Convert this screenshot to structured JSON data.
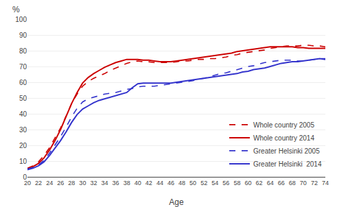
{
  "chart_data": {
    "type": "line",
    "xlabel": "Age",
    "annotations": [
      "%"
    ],
    "x": [
      20,
      21,
      22,
      23,
      24,
      25,
      26,
      27,
      28,
      29,
      30,
      31,
      32,
      33,
      34,
      35,
      36,
      37,
      38,
      39,
      40,
      41,
      42,
      43,
      44,
      45,
      46,
      47,
      48,
      49,
      50,
      51,
      52,
      53,
      54,
      55,
      56,
      57,
      58,
      59,
      60,
      61,
      62,
      63,
      64,
      65,
      66,
      67,
      68,
      69,
      70,
      71,
      72,
      73,
      74
    ],
    "series": [
      {
        "name": "Whole country 2005",
        "color": "#cc0000",
        "line_style": "dashed",
        "values": [
          5.5,
          7.0,
          9.5,
          13.5,
          18.5,
          24.5,
          31.0,
          38.5,
          46.5,
          52.5,
          57.5,
          60.5,
          62.5,
          64.0,
          65.5,
          67.5,
          69.0,
          70.5,
          72.0,
          73.0,
          73.5,
          73.0,
          73.0,
          72.5,
          72.5,
          72.5,
          72.5,
          73.0,
          73.5,
          73.5,
          74.0,
          74.5,
          74.5,
          75.0,
          75.0,
          75.5,
          76.0,
          77.0,
          77.5,
          78.5,
          79.0,
          79.5,
          80.0,
          80.5,
          81.5,
          82.0,
          82.5,
          83.0,
          83.0,
          83.0,
          83.5,
          83.5,
          83.0,
          83.0,
          82.5
        ]
      },
      {
        "name": "Whole country 2014",
        "color": "#cc0000",
        "line_style": "solid",
        "values": [
          5.0,
          6.5,
          8.5,
          12.0,
          17.0,
          23.0,
          30.0,
          38.0,
          46.5,
          53.5,
          59.5,
          63.0,
          65.5,
          67.5,
          69.5,
          71.0,
          72.5,
          73.5,
          74.5,
          74.5,
          74.5,
          74.0,
          74.0,
          73.5,
          73.0,
          73.0,
          73.0,
          73.5,
          74.0,
          74.5,
          75.0,
          75.5,
          76.0,
          76.5,
          77.0,
          77.5,
          78.0,
          78.5,
          79.5,
          80.0,
          80.5,
          81.0,
          81.5,
          82.0,
          82.5,
          82.5,
          82.5,
          82.5,
          82.5,
          82.0,
          82.0,
          81.5,
          81.5,
          81.5,
          81.5
        ]
      },
      {
        "name": "Greater Helsinki 2005",
        "color": "#3333cc",
        "line_style": "dashed",
        "values": [
          5.0,
          6.0,
          7.5,
          10.5,
          15.0,
          20.0,
          25.5,
          31.5,
          38.0,
          43.5,
          47.5,
          49.5,
          50.5,
          51.5,
          52.5,
          53.0,
          53.5,
          54.5,
          55.5,
          56.0,
          57.0,
          57.5,
          57.5,
          57.5,
          58.0,
          58.5,
          59.0,
          59.5,
          60.0,
          60.5,
          61.0,
          62.0,
          62.5,
          63.5,
          64.5,
          65.5,
          66.0,
          67.0,
          68.0,
          69.0,
          70.0,
          70.5,
          71.5,
          72.5,
          73.0,
          73.5,
          74.0,
          74.0,
          74.0,
          73.5,
          73.5,
          74.0,
          74.5,
          75.0,
          75.0
        ]
      },
      {
        "name": "Greater Helsinki  2014",
        "color": "#3333cc",
        "line_style": "solid",
        "values": [
          4.5,
          5.5,
          7.0,
          9.5,
          13.5,
          18.0,
          23.0,
          28.5,
          34.5,
          39.5,
          43.0,
          45.0,
          47.0,
          48.5,
          49.5,
          50.5,
          51.5,
          52.5,
          53.5,
          56.5,
          59.0,
          59.5,
          59.5,
          59.5,
          59.5,
          59.5,
          59.5,
          60.0,
          60.5,
          61.0,
          61.5,
          62.0,
          62.5,
          63.0,
          63.5,
          64.0,
          64.5,
          65.0,
          65.5,
          66.5,
          67.0,
          68.0,
          68.5,
          69.0,
          70.0,
          71.0,
          72.0,
          72.5,
          73.0,
          73.0,
          73.5,
          74.0,
          74.5,
          75.0,
          74.5
        ]
      }
    ],
    "xlim": [
      20,
      74
    ],
    "xticks": [
      20,
      22,
      24,
      26,
      28,
      30,
      32,
      34,
      36,
      38,
      40,
      42,
      44,
      46,
      48,
      50,
      52,
      54,
      56,
      58,
      60,
      62,
      64,
      66,
      68,
      70,
      72,
      74
    ],
    "ylim": [
      0,
      100
    ],
    "yticks": [
      0,
      10,
      20,
      30,
      40,
      50,
      60,
      70,
      80,
      90,
      100
    ],
    "grid": true,
    "legend": "lower right"
  }
}
